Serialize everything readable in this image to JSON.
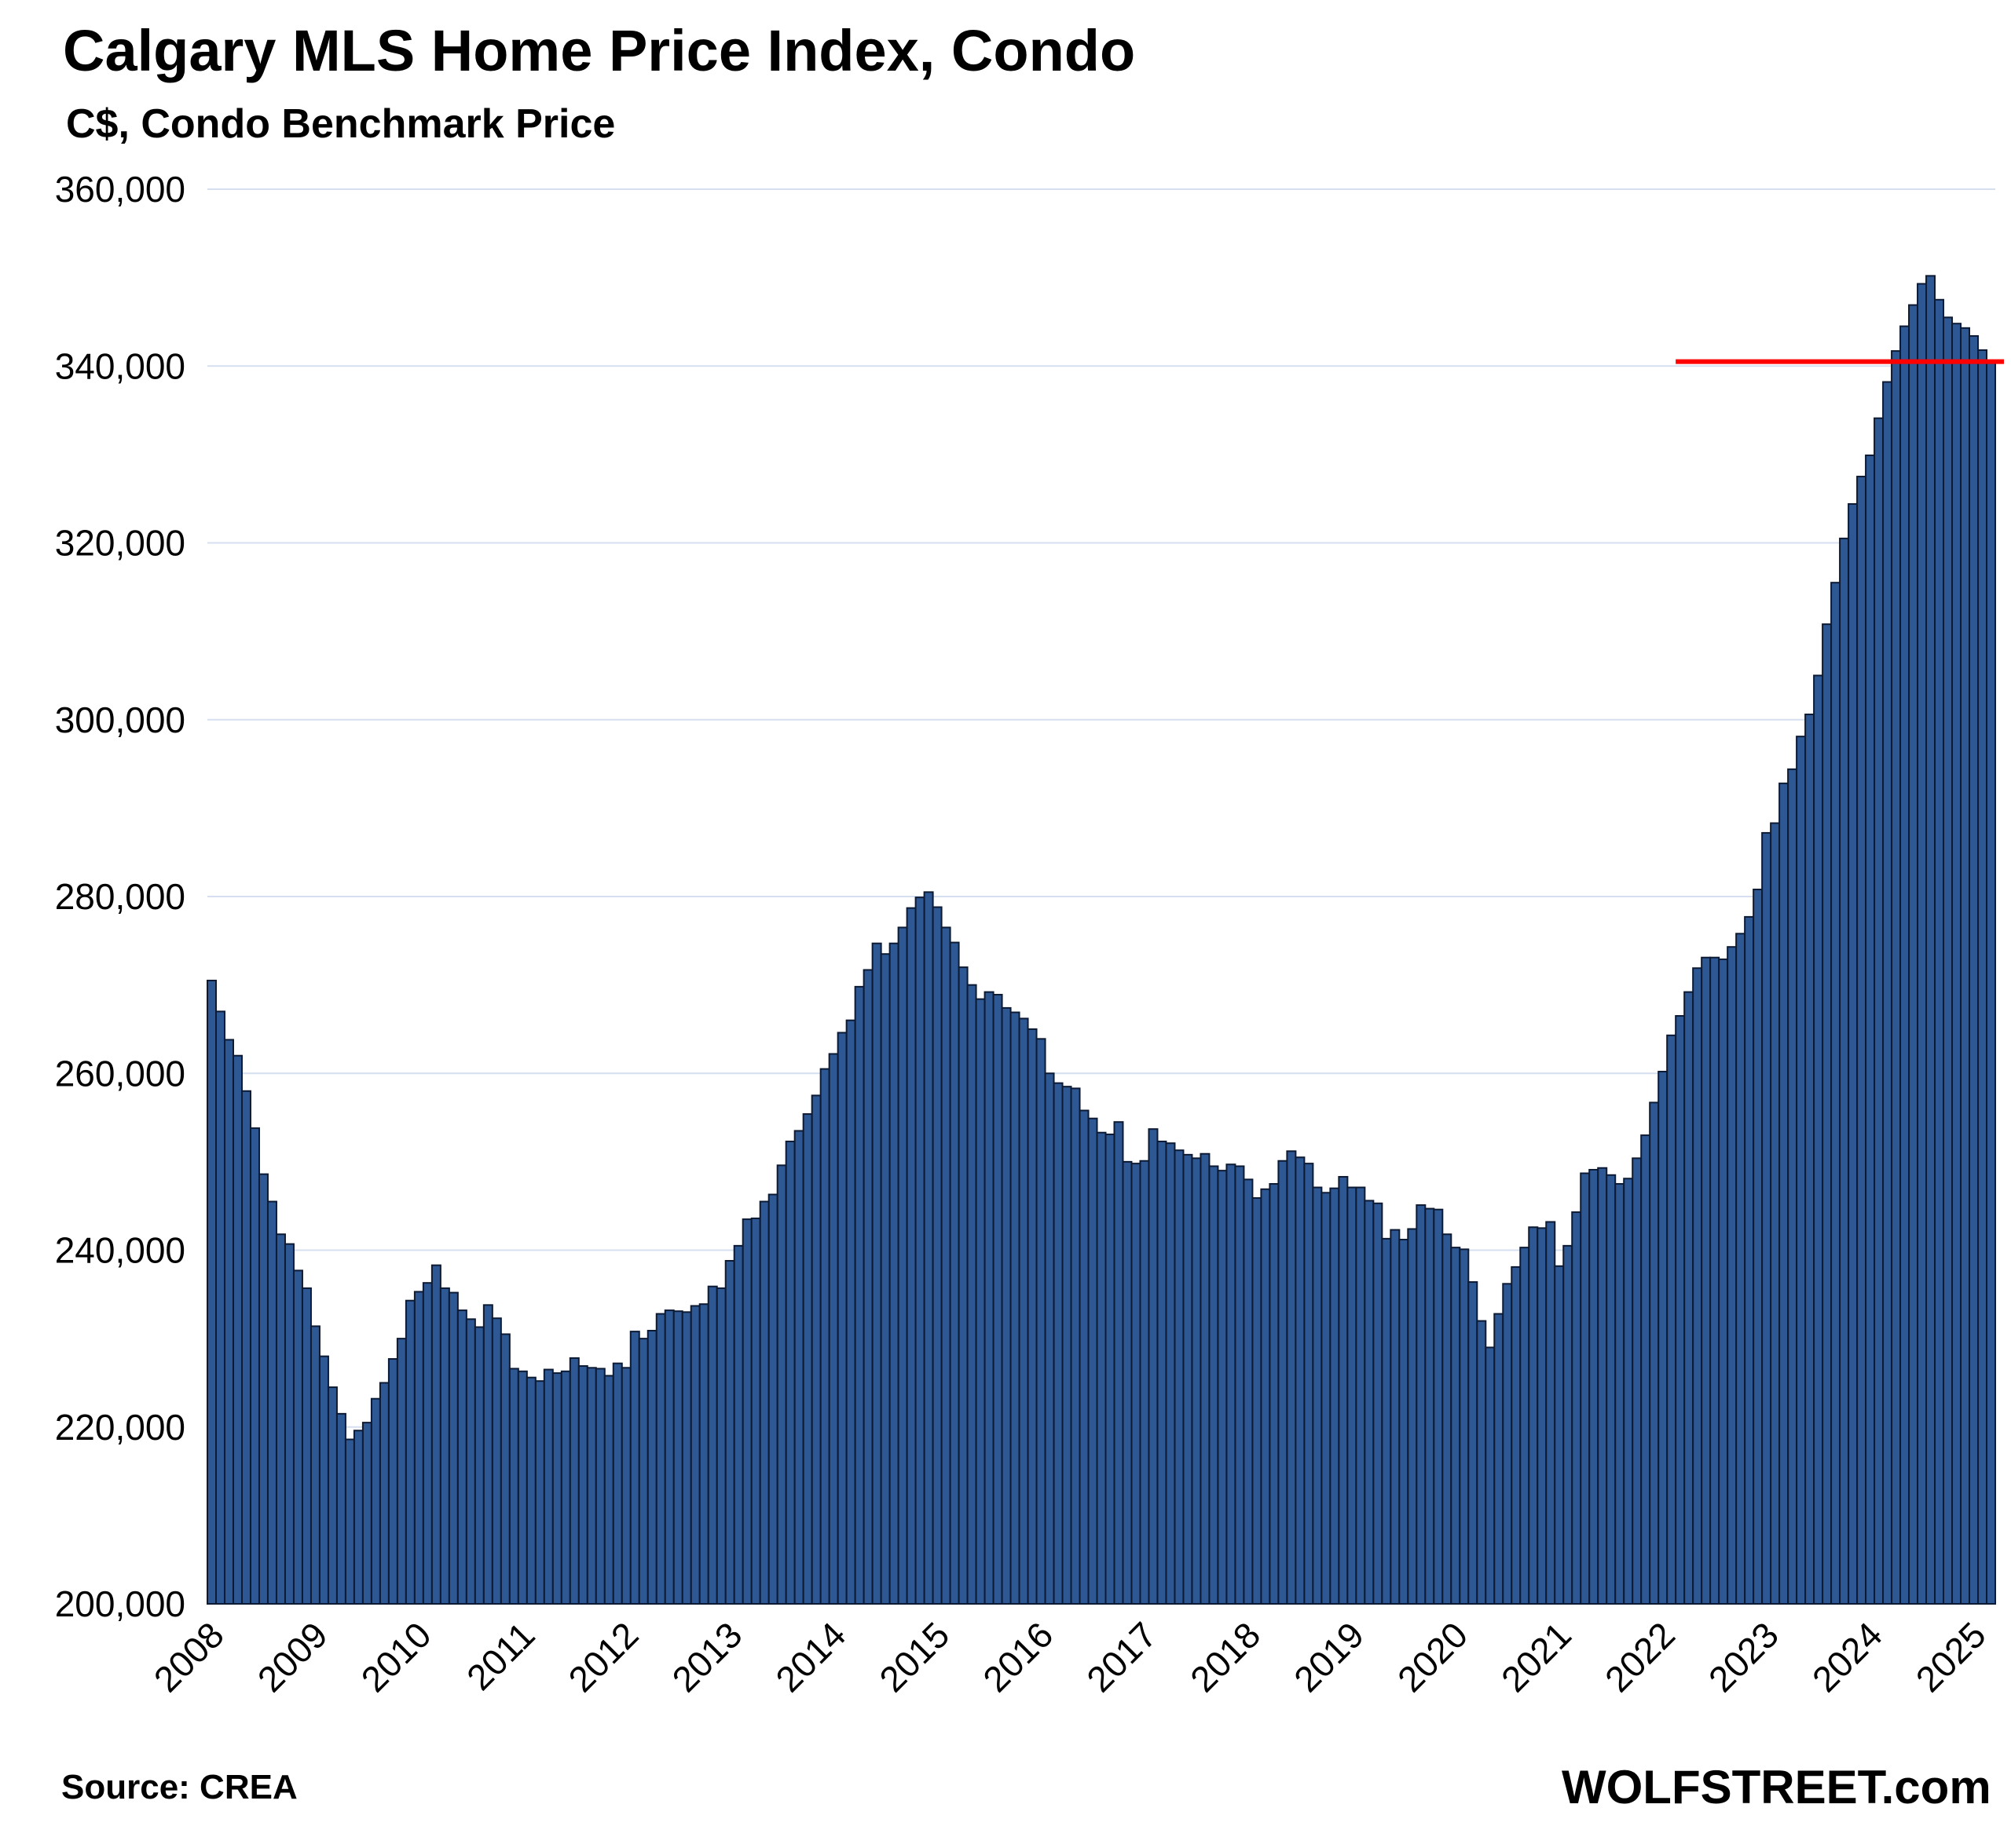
{
  "chart_data": {
    "type": "bar",
    "title": "Calgary MLS Home Price Index, Condo",
    "subtitle": "C$, Condo Benchmark Price",
    "xlabel": "",
    "ylabel": "",
    "ylim": [
      200000,
      360000
    ],
    "y_ticks": [
      "200,000",
      "220,000",
      "240,000",
      "260,000",
      "280,000",
      "300,000",
      "320,000",
      "340,000",
      "360,000"
    ],
    "y_tick_values": [
      200000,
      220000,
      240000,
      260000,
      280000,
      300000,
      320000,
      340000,
      360000
    ],
    "x_tick_labels": [
      "2008",
      "2009",
      "2010",
      "2011",
      "2012",
      "2013",
      "2014",
      "2015",
      "2016",
      "2017",
      "2018",
      "2019",
      "2020",
      "2021",
      "2022",
      "2023",
      "2024",
      "2025"
    ],
    "grid": true,
    "legend": "none",
    "bar_color": "#2E5894",
    "bar_edge_color": "#0d1a33",
    "reference_line": {
      "value": 340500,
      "from": "2022-03",
      "to": "2025-04",
      "color": "#FF0000"
    },
    "series": [
      {
        "start": "2008-01",
        "frequency": "monthly",
        "values": [
          270500,
          267000,
          263800,
          262000,
          258000,
          253800,
          248600,
          245500,
          241800,
          240700,
          237700,
          235700,
          231400,
          228000,
          224500,
          221500,
          218600,
          219600,
          220500,
          223200,
          225000,
          227700,
          230000,
          234300,
          235300,
          236300,
          238300,
          235700,
          235200,
          233200,
          232200,
          231300,
          233800,
          232300,
          230500,
          226600,
          226300,
          225600,
          225200,
          226500,
          226100,
          226300,
          227800,
          226900,
          226700,
          226600,
          225800,
          227200,
          226700,
          230800,
          230000,
          230900,
          232800,
          233200,
          233100,
          233000,
          233700,
          233900,
          235900,
          235700,
          238800,
          240500,
          243500,
          243600,
          245500,
          246300,
          249600,
          252300,
          253500,
          255400,
          257500,
          260500,
          262200,
          264600,
          266000,
          269800,
          271700,
          274700,
          273500,
          274700,
          276500,
          278700,
          279900,
          280500,
          278800,
          276500,
          274800,
          272000,
          270000,
          268400,
          269200,
          268900,
          267400,
          266900,
          266200,
          265000,
          263900,
          260000,
          258900,
          258500,
          258300,
          255800,
          254900,
          253300,
          253100,
          254500,
          250000,
          249800,
          250100,
          253700,
          252300,
          252100,
          251300,
          250800,
          250400,
          250900,
          249500,
          249000,
          249700,
          249500,
          248000,
          245900,
          246900,
          247500,
          250100,
          251200,
          250500,
          249800,
          247100,
          246500,
          247000,
          248300,
          247100,
          247100,
          245600,
          245300,
          241300,
          242300,
          241200,
          242400,
          245100,
          244700,
          244600,
          241800,
          240300,
          240100,
          236400,
          232000,
          229000,
          232800,
          236200,
          238100,
          240300,
          242600,
          242500,
          243200,
          238200,
          240500,
          244300,
          248700,
          249100,
          249300,
          248500,
          247500,
          248100,
          250400,
          253000,
          256700,
          260200,
          264300,
          266500,
          269200,
          271900,
          273100,
          273100,
          272900,
          274300,
          275800,
          277700,
          280800,
          287200,
          288300,
          292800,
          294400,
          298100,
          300600,
          305000,
          310800,
          315500,
          320500,
          324400,
          327500,
          329900,
          334100,
          338200,
          341700,
          344500,
          346900,
          349300,
          350200,
          347500,
          345500,
          344800,
          344300,
          343400,
          341800,
          340500
        ]
      }
    ],
    "source": "Source: CREA",
    "brand": "WOLFSTREET.com"
  }
}
